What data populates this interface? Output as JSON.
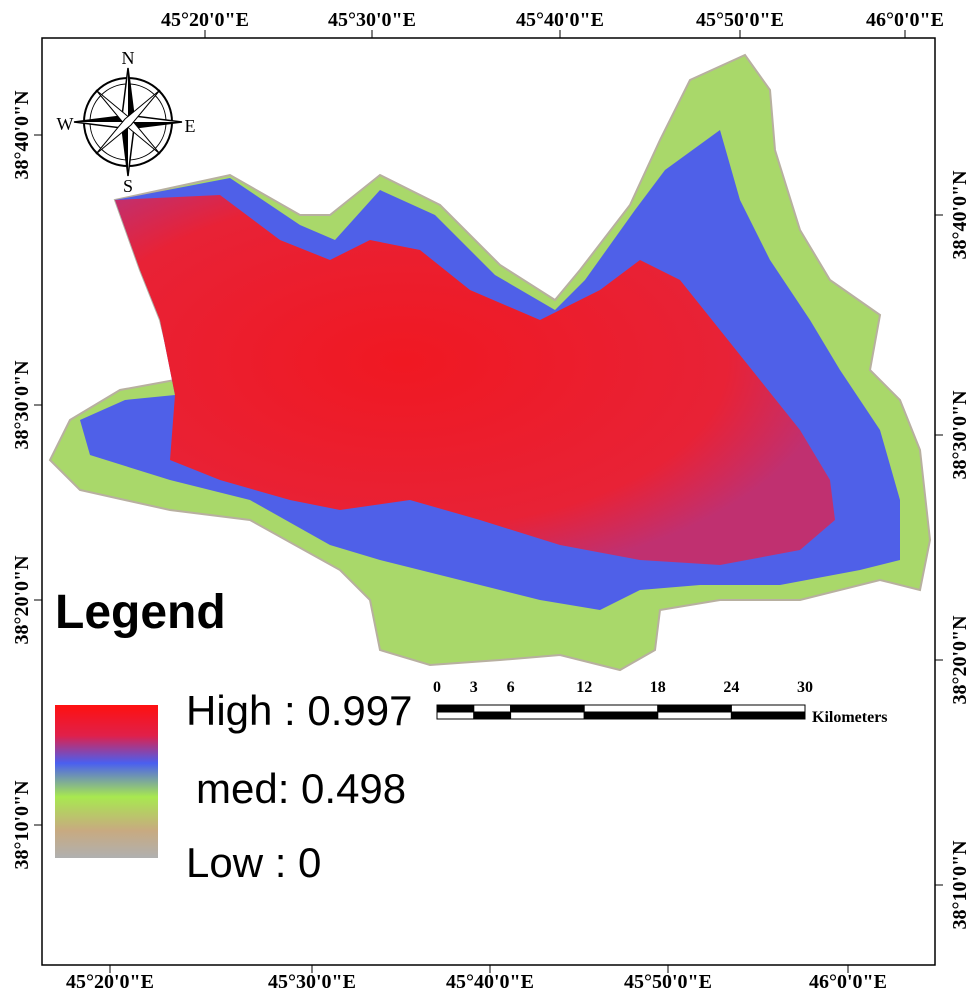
{
  "top_axis": {
    "labels": [
      "45°20'0\"E",
      "45°30'0\"E",
      "45°40'0\"E",
      "45°50'0\"E",
      "46°0'0\"E"
    ]
  },
  "bottom_axis": {
    "labels": [
      "45°20'0\"E",
      "45°30'0\"E",
      "45°40'0\"E",
      "45°50'0\"E",
      "46°0'0\"E"
    ]
  },
  "left_axis": {
    "labels": [
      "38°40'0\"N",
      "38°30'0\"N",
      "38°20'0\"N",
      "38°10'0\"N"
    ]
  },
  "right_axis": {
    "labels": [
      "38°40'0\"N",
      "38°30'0\"N",
      "38°20'0\"N",
      "38°10'0\"N"
    ]
  },
  "compass": {
    "n": "N",
    "w": "W",
    "e": "E",
    "s": "S"
  },
  "legend": {
    "title": "Legend",
    "high": "High : 0.997",
    "med": "med: 0.498",
    "low": "Low : 0"
  },
  "scale_bar": {
    "ticks": [
      0,
      3,
      6,
      12,
      18,
      24,
      30
    ],
    "unit": "Kilometers"
  }
}
